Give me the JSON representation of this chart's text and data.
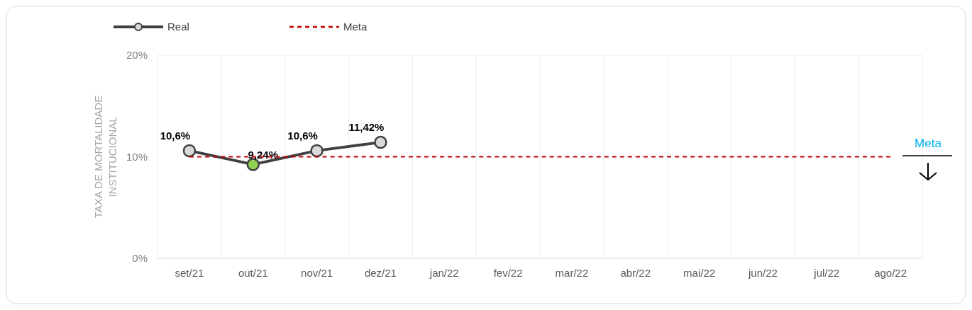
{
  "chart_data": {
    "type": "line",
    "ylabel": "TAXA DE MORTALIDADE INSTITUCIONAL",
    "categories": [
      "set/21",
      "out/21",
      "nov/21",
      "dez/21",
      "jan/22",
      "fev/22",
      "mar/22",
      "abr/22",
      "mai/22",
      "jun/22",
      "jul/22",
      "ago/22"
    ],
    "series": [
      {
        "name": "Real",
        "color": "#404040",
        "marker": "circle",
        "colors": [
          "#d9d9d9",
          "#92d050",
          "#d9d9d9",
          "#d9d9d9",
          null,
          null,
          null,
          null,
          null,
          null,
          null,
          null
        ],
        "values": [
          10.6,
          9.24,
          10.6,
          11.42,
          null,
          null,
          null,
          null,
          null,
          null,
          null,
          null
        ],
        "value_labels": [
          "10,6%",
          "9,24%",
          "10,6%",
          "11,42%",
          null,
          null,
          null,
          null,
          null,
          null,
          null,
          null
        ]
      },
      {
        "name": "Meta",
        "color": "#c00000",
        "line_style": "dashed",
        "marker": "none",
        "values": [
          10,
          10,
          10,
          10,
          10,
          10,
          10,
          10,
          10,
          10,
          10,
          10
        ]
      }
    ],
    "ylim": [
      0,
      20
    ],
    "yticks": [
      {
        "value": 0,
        "label": "0%"
      },
      {
        "value": 10,
        "label": "10%"
      },
      {
        "value": 20,
        "label": "20%"
      }
    ],
    "grid": "x",
    "legend": "top left",
    "annotations": [
      "Meta"
    ]
  }
}
